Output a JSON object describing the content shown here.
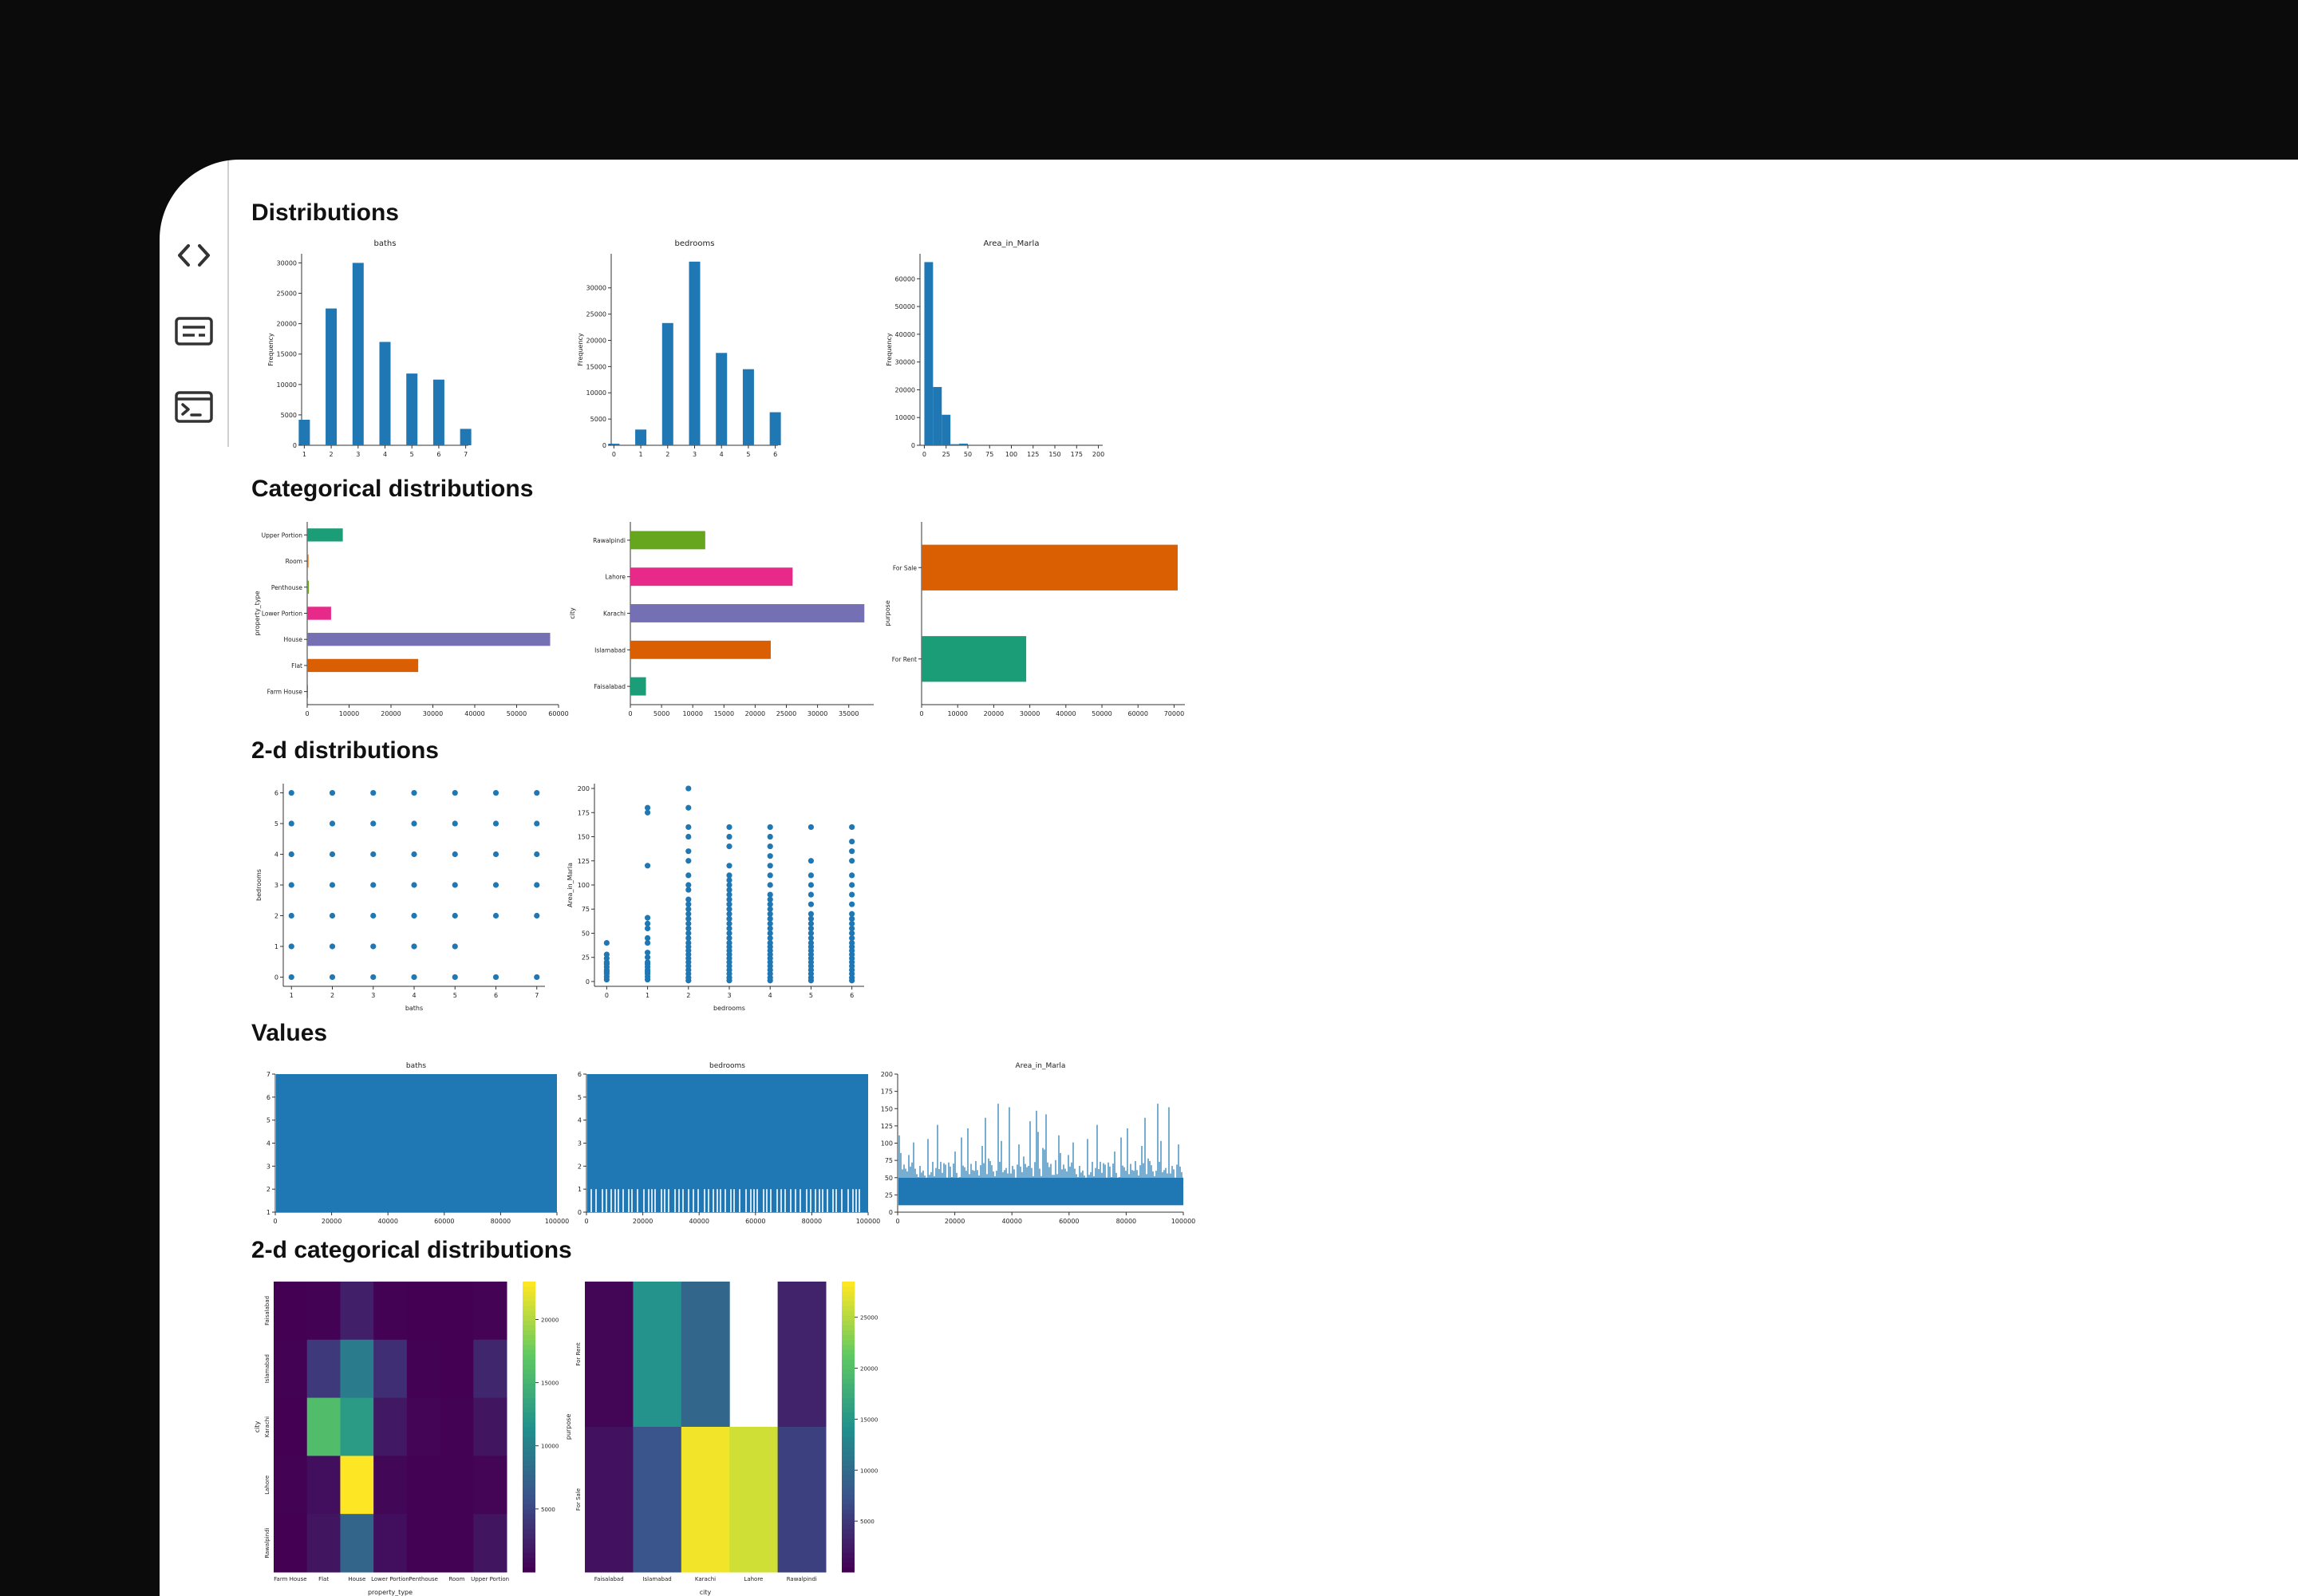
{
  "sidebar": {
    "icons": [
      {
        "name": "code-icon"
      },
      {
        "name": "text-view-icon"
      },
      {
        "name": "terminal-icon"
      }
    ]
  },
  "sections": {
    "distributions": "Distributions",
    "categorical": "Categorical distributions",
    "two_d": "2-d distributions",
    "values": "Values",
    "two_d_categorical": "2-d categorical distributions"
  },
  "colors": {
    "bar": "#1f77b4",
    "categorical": [
      "#1b9e77",
      "#d95f02",
      "#7570b3",
      "#e7298a",
      "#66a61e"
    ],
    "viridis": [
      "#440154",
      "#3b528b",
      "#21918c",
      "#5ec962",
      "#fde725"
    ]
  },
  "chart_data": [
    {
      "id": "hist-baths",
      "type": "bar",
      "title": "baths",
      "ylabel": "Frequency",
      "xticks": [
        "1",
        "2",
        "3",
        "4",
        "5",
        "6",
        "7"
      ],
      "bins": [
        1,
        2,
        3,
        4,
        5,
        6,
        7
      ],
      "values": [
        4200,
        22500,
        30000,
        17000,
        11800,
        10800,
        2700
      ],
      "xlim": [
        0.9,
        7.1
      ],
      "ylim": [
        0,
        31500
      ],
      "yticks": [
        "0",
        "5000",
        "10000",
        "15000",
        "20000",
        "25000",
        "30000"
      ]
    },
    {
      "id": "hist-bedrooms",
      "type": "bar",
      "title": "bedrooms",
      "ylabel": "Frequency",
      "xticks": [
        "0",
        "1",
        "2",
        "3",
        "4",
        "5",
        "6"
      ],
      "bins": [
        0,
        1,
        2,
        3,
        4,
        5,
        6
      ],
      "values": [
        300,
        3000,
        23300,
        35000,
        17600,
        14500,
        6300
      ],
      "xlim": [
        -0.1,
        6.1
      ],
      "ylim": [
        0,
        36500
      ],
      "yticks": [
        "0",
        "5000",
        "10000",
        "15000",
        "20000",
        "25000",
        "30000"
      ]
    },
    {
      "id": "hist-area",
      "type": "bar",
      "title": "Area_in_Marla",
      "ylabel": "Frequency",
      "xticks": [
        "0",
        "25",
        "50",
        "75",
        "100",
        "125",
        "150",
        "175",
        "200"
      ],
      "bins": [
        0,
        10,
        20,
        30,
        40
      ],
      "values": [
        66000,
        21000,
        11000,
        400,
        600
      ],
      "xlim": [
        -5,
        205
      ],
      "ylim": [
        0,
        69000
      ],
      "yticks": [
        "0",
        "10000",
        "20000",
        "30000",
        "40000",
        "50000",
        "60000"
      ]
    },
    {
      "id": "cat-property-type",
      "type": "bar",
      "orientation": "horizontal",
      "ylabel": "property_type",
      "categories": [
        "Upper Portion",
        "Room",
        "Penthouse",
        "Lower Portion",
        "House",
        "Flat",
        "Farm House"
      ],
      "values": [
        8500,
        300,
        400,
        5700,
        58000,
        26500,
        100
      ],
      "colors": [
        "#1b9e77",
        "#d95f02",
        "#66a61e",
        "#e7298a",
        "#7570b3",
        "#d95f02",
        "#1b9e77"
      ],
      "xlim": [
        0,
        60000
      ],
      "xticks": [
        "0",
        "10000",
        "20000",
        "30000",
        "40000",
        "50000",
        "60000"
      ]
    },
    {
      "id": "cat-city",
      "type": "bar",
      "orientation": "horizontal",
      "ylabel": "city",
      "categories": [
        "Rawalpindi",
        "Lahore",
        "Karachi",
        "Islamabad",
        "Faisalabad"
      ],
      "values": [
        12000,
        26000,
        37500,
        22500,
        2500
      ],
      "colors": [
        "#66a61e",
        "#e7298a",
        "#7570b3",
        "#d95f02",
        "#1b9e77"
      ],
      "xlim": [
        0,
        39000
      ],
      "xticks": [
        "0",
        "5000",
        "10000",
        "15000",
        "20000",
        "25000",
        "30000",
        "35000"
      ]
    },
    {
      "id": "cat-purpose",
      "type": "bar",
      "orientation": "horizontal",
      "ylabel": "purpose",
      "categories": [
        "For Sale",
        "For Rent"
      ],
      "values": [
        71000,
        29000
      ],
      "colors": [
        "#d95f02",
        "#1b9e77"
      ],
      "xlim": [
        0,
        73000
      ],
      "xticks": [
        "0",
        "10000",
        "20000",
        "30000",
        "40000",
        "50000",
        "60000",
        "70000"
      ]
    },
    {
      "id": "scatter-baths-bedrooms",
      "type": "scatter",
      "xlabel": "baths",
      "ylabel": "bedrooms",
      "xlim": [
        0.8,
        7.2
      ],
      "ylim": [
        -0.3,
        6.3
      ],
      "xticks": [
        "1",
        "2",
        "3",
        "4",
        "5",
        "6",
        "7"
      ],
      "yticks": [
        "0",
        "1",
        "2",
        "3",
        "4",
        "5",
        "6"
      ],
      "points": [
        [
          1,
          0
        ],
        [
          2,
          0
        ],
        [
          3,
          0
        ],
        [
          4,
          0
        ],
        [
          5,
          0
        ],
        [
          6,
          0
        ],
        [
          7,
          0
        ],
        [
          1,
          1
        ],
        [
          2,
          1
        ],
        [
          3,
          1
        ],
        [
          4,
          1
        ],
        [
          5,
          1
        ],
        [
          1,
          2
        ],
        [
          2,
          2
        ],
        [
          3,
          2
        ],
        [
          4,
          2
        ],
        [
          5,
          2
        ],
        [
          6,
          2
        ],
        [
          7,
          2
        ],
        [
          1,
          3
        ],
        [
          2,
          3
        ],
        [
          3,
          3
        ],
        [
          4,
          3
        ],
        [
          5,
          3
        ],
        [
          6,
          3
        ],
        [
          7,
          3
        ],
        [
          1,
          4
        ],
        [
          2,
          4
        ],
        [
          3,
          4
        ],
        [
          4,
          4
        ],
        [
          5,
          4
        ],
        [
          6,
          4
        ],
        [
          7,
          4
        ],
        [
          1,
          5
        ],
        [
          2,
          5
        ],
        [
          3,
          5
        ],
        [
          4,
          5
        ],
        [
          5,
          5
        ],
        [
          6,
          5
        ],
        [
          7,
          5
        ],
        [
          1,
          6
        ],
        [
          2,
          6
        ],
        [
          3,
          6
        ],
        [
          4,
          6
        ],
        [
          5,
          6
        ],
        [
          6,
          6
        ],
        [
          7,
          6
        ]
      ]
    },
    {
      "id": "scatter-bedrooms-area",
      "type": "scatter",
      "xlabel": "bedrooms",
      "ylabel": "Area_in_Marla",
      "xlim": [
        -0.3,
        6.3
      ],
      "ylim": [
        -5,
        205
      ],
      "xticks": [
        "0",
        "1",
        "2",
        "3",
        "4",
        "5",
        "6"
      ],
      "yticks": [
        "0",
        "25",
        "50",
        "75",
        "100",
        "125",
        "150",
        "175",
        "200"
      ],
      "points": [
        [
          0,
          2
        ],
        [
          0,
          5
        ],
        [
          0,
          8
        ],
        [
          0,
          10
        ],
        [
          0,
          12
        ],
        [
          0,
          15
        ],
        [
          0,
          18
        ],
        [
          0,
          20
        ],
        [
          0,
          24
        ],
        [
          0,
          28
        ],
        [
          0,
          40
        ],
        [
          1,
          2
        ],
        [
          1,
          5
        ],
        [
          1,
          8
        ],
        [
          1,
          10
        ],
        [
          1,
          12
        ],
        [
          1,
          15
        ],
        [
          1,
          18
        ],
        [
          1,
          20
        ],
        [
          1,
          25
        ],
        [
          1,
          30
        ],
        [
          1,
          40
        ],
        [
          1,
          45
        ],
        [
          1,
          55
        ],
        [
          1,
          60
        ],
        [
          1,
          66
        ],
        [
          1,
          120
        ],
        [
          1,
          175
        ],
        [
          1,
          180
        ],
        [
          2,
          1
        ],
        [
          2,
          4
        ],
        [
          2,
          8
        ],
        [
          2,
          12
        ],
        [
          2,
          16
        ],
        [
          2,
          20
        ],
        [
          2,
          24
        ],
        [
          2,
          28
        ],
        [
          2,
          32
        ],
        [
          2,
          36
        ],
        [
          2,
          40
        ],
        [
          2,
          45
        ],
        [
          2,
          50
        ],
        [
          2,
          55
        ],
        [
          2,
          60
        ],
        [
          2,
          65
        ],
        [
          2,
          70
        ],
        [
          2,
          75
        ],
        [
          2,
          80
        ],
        [
          2,
          85
        ],
        [
          2,
          95
        ],
        [
          2,
          100
        ],
        [
          2,
          110
        ],
        [
          2,
          125
        ],
        [
          2,
          135
        ],
        [
          2,
          150
        ],
        [
          2,
          160
        ],
        [
          2,
          180
        ],
        [
          2,
          200
        ],
        [
          3,
          1
        ],
        [
          3,
          4
        ],
        [
          3,
          8
        ],
        [
          3,
          12
        ],
        [
          3,
          16
        ],
        [
          3,
          20
        ],
        [
          3,
          24
        ],
        [
          3,
          28
        ],
        [
          3,
          32
        ],
        [
          3,
          36
        ],
        [
          3,
          40
        ],
        [
          3,
          45
        ],
        [
          3,
          50
        ],
        [
          3,
          55
        ],
        [
          3,
          60
        ],
        [
          3,
          65
        ],
        [
          3,
          70
        ],
        [
          3,
          75
        ],
        [
          3,
          80
        ],
        [
          3,
          85
        ],
        [
          3,
          90
        ],
        [
          3,
          95
        ],
        [
          3,
          100
        ],
        [
          3,
          105
        ],
        [
          3,
          110
        ],
        [
          3,
          120
        ],
        [
          3,
          140
        ],
        [
          3,
          150
        ],
        [
          3,
          160
        ],
        [
          4,
          1
        ],
        [
          4,
          4
        ],
        [
          4,
          8
        ],
        [
          4,
          12
        ],
        [
          4,
          16
        ],
        [
          4,
          20
        ],
        [
          4,
          24
        ],
        [
          4,
          28
        ],
        [
          4,
          32
        ],
        [
          4,
          36
        ],
        [
          4,
          40
        ],
        [
          4,
          45
        ],
        [
          4,
          50
        ],
        [
          4,
          55
        ],
        [
          4,
          60
        ],
        [
          4,
          65
        ],
        [
          4,
          70
        ],
        [
          4,
          75
        ],
        [
          4,
          80
        ],
        [
          4,
          85
        ],
        [
          4,
          90
        ],
        [
          4,
          100
        ],
        [
          4,
          110
        ],
        [
          4,
          120
        ],
        [
          4,
          130
        ],
        [
          4,
          140
        ],
        [
          4,
          150
        ],
        [
          4,
          160
        ],
        [
          5,
          1
        ],
        [
          5,
          4
        ],
        [
          5,
          8
        ],
        [
          5,
          12
        ],
        [
          5,
          16
        ],
        [
          5,
          20
        ],
        [
          5,
          24
        ],
        [
          5,
          28
        ],
        [
          5,
          32
        ],
        [
          5,
          36
        ],
        [
          5,
          40
        ],
        [
          5,
          45
        ],
        [
          5,
          50
        ],
        [
          5,
          55
        ],
        [
          5,
          60
        ],
        [
          5,
          65
        ],
        [
          5,
          70
        ],
        [
          5,
          80
        ],
        [
          5,
          90
        ],
        [
          5,
          100
        ],
        [
          5,
          110
        ],
        [
          5,
          125
        ],
        [
          5,
          160
        ],
        [
          6,
          1
        ],
        [
          6,
          4
        ],
        [
          6,
          8
        ],
        [
          6,
          12
        ],
        [
          6,
          16
        ],
        [
          6,
          20
        ],
        [
          6,
          24
        ],
        [
          6,
          28
        ],
        [
          6,
          32
        ],
        [
          6,
          36
        ],
        [
          6,
          40
        ],
        [
          6,
          45
        ],
        [
          6,
          50
        ],
        [
          6,
          55
        ],
        [
          6,
          60
        ],
        [
          6,
          65
        ],
        [
          6,
          70
        ],
        [
          6,
          80
        ],
        [
          6,
          90
        ],
        [
          6,
          100
        ],
        [
          6,
          110
        ],
        [
          6,
          125
        ],
        [
          6,
          135
        ],
        [
          6,
          145
        ],
        [
          6,
          160
        ]
      ]
    },
    {
      "id": "values-baths",
      "type": "area",
      "title": "baths",
      "xlim": [
        0,
        100000
      ],
      "ylim": [
        1,
        7
      ],
      "xticks": [
        "0",
        "20000",
        "40000",
        "60000",
        "80000",
        "100000"
      ],
      "yticks": [
        "1",
        "2",
        "3",
        "4",
        "5",
        "6",
        "7"
      ]
    },
    {
      "id": "values-bedrooms",
      "type": "area",
      "title": "bedrooms",
      "xlim": [
        0,
        100000
      ],
      "ylim": [
        0,
        6
      ],
      "xticks": [
        "0",
        "20000",
        "40000",
        "60000",
        "80000",
        "100000"
      ],
      "yticks": [
        "0",
        "1",
        "2",
        "3",
        "4",
        "5",
        "6"
      ]
    },
    {
      "id": "values-area",
      "type": "line",
      "title": "Area_in_Marla",
      "xlim": [
        0,
        100000
      ],
      "ylim": [
        0,
        200
      ],
      "xticks": [
        "0",
        "20000",
        "40000",
        "60000",
        "80000",
        "100000"
      ],
      "yticks": [
        "0",
        "25",
        "50",
        "75",
        "100",
        "125",
        "150",
        "175",
        "200"
      ]
    },
    {
      "id": "heatmap-city-property",
      "type": "heatmap",
      "xlabel": "property_type",
      "ylabel": "city",
      "xcategories": [
        "Farm House",
        "Flat",
        "House",
        "Lower Portion",
        "Penthouse",
        "Room",
        "Upper Portion"
      ],
      "ycategories": [
        "Faisalabad",
        "Islamabad",
        "Karachi",
        "Lahore",
        "Rawalpindi"
      ],
      "values": [
        [
          0,
          100,
          2200,
          80,
          10,
          10,
          150
        ],
        [
          40,
          4000,
          9500,
          3200,
          60,
          30,
          2600
        ],
        [
          30,
          16000,
          12500,
          1600,
          300,
          80,
          1400
        ],
        [
          40,
          1000,
          23000,
          400,
          50,
          60,
          300
        ],
        [
          20,
          1400,
          7500,
          1000,
          60,
          40,
          1400
        ]
      ],
      "vmin": 0,
      "vmax": 23000,
      "colorbar_ticks": [
        "5000",
        "10000",
        "15000",
        "20000"
      ]
    },
    {
      "id": "heatmap-purpose-city",
      "type": "heatmap",
      "xlabel": "city",
      "ylabel": "purpose",
      "xcategories": [
        "Faisalabad",
        "Islamabad",
        "Karachi",
        "Lahore",
        "Rawalpindi"
      ],
      "ycategories": [
        "For Rent",
        "For Sale"
      ],
      "values": [
        [
          400,
          14500,
          9500,
          null,
          3000
        ],
        [
          1500,
          7500,
          28000,
          26500,
          5500
        ]
      ],
      "vmin": 0,
      "vmax": 28500,
      "colorbar_ticks": [
        "5000",
        "10000",
        "15000",
        "20000",
        "25000"
      ]
    }
  ]
}
